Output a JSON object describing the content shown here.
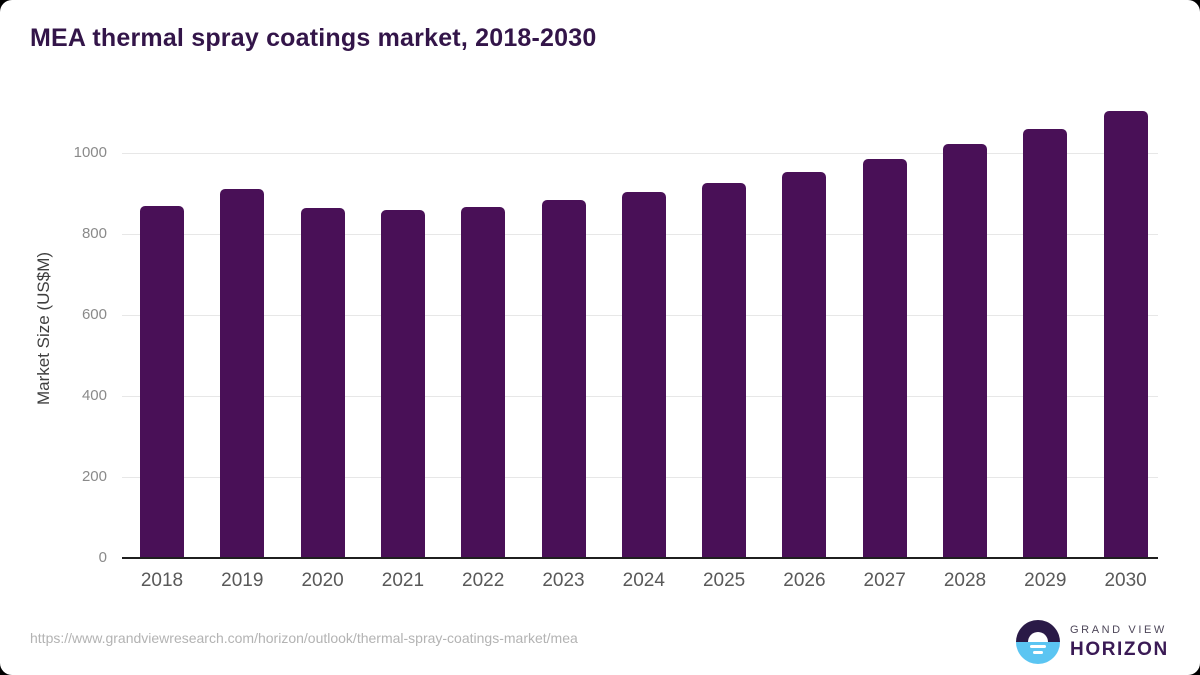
{
  "page": {
    "title": "MEA thermal spray coatings market, 2018-2030"
  },
  "chart_data": {
    "type": "bar",
    "title": "MEA thermal spray coatings market, 2018-2030",
    "categories": [
      "2018",
      "2019",
      "2020",
      "2021",
      "2022",
      "2023",
      "2024",
      "2025",
      "2026",
      "2027",
      "2028",
      "2029",
      "2030"
    ],
    "values": [
      869,
      911,
      866,
      860,
      868,
      884,
      905,
      927,
      953,
      986,
      1022,
      1059,
      1104
    ],
    "xlabel": "",
    "ylabel": "Market Size (US$M)",
    "yticks": [
      0,
      200,
      400,
      600,
      800,
      1000
    ],
    "ylim": [
      0,
      1130
    ],
    "grid": "horizontal",
    "legend": "none",
    "bar_color": "#491057",
    "gridline_color": "#e7e7e7",
    "axis_color": "#1f1f1f"
  },
  "footer": {
    "source_url": "https://www.grandviewresearch.com/horizon/outlook/thermal-spray-coatings-market/mea",
    "logo": {
      "line1": "GRAND VIEW",
      "line2": "HORIZON",
      "mark_top_color": "#2a1a47",
      "mark_bottom_color": "#5bc5f2"
    }
  }
}
